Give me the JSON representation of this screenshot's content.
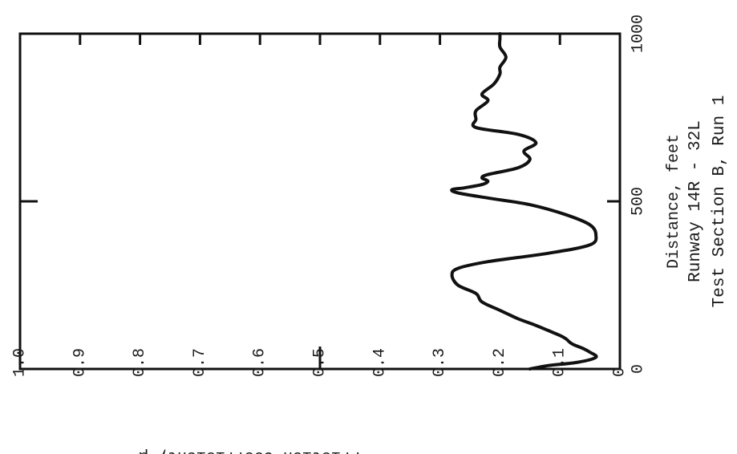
{
  "chart_data": {
    "type": "line",
    "orientation": "rotated-90-ccw",
    "xlabel": "Distance, feet",
    "ylabel": "Friction Coefficient, μ",
    "xlim": [
      0,
      1000
    ],
    "ylim": [
      0,
      1.0
    ],
    "x_ticks": [
      "0",
      "500",
      "1000"
    ],
    "y_ticks": [
      "0",
      "0.1",
      "0.2",
      "0.3",
      "0.4",
      "0.5",
      "0.6",
      "0.7",
      "0.8",
      "0.9",
      "1.0"
    ],
    "caption": [
      "Runway 14R - 32L",
      "Test Section B, Run 1"
    ],
    "grid": false,
    "series": [
      {
        "x": [
          0,
          10,
          20,
          35,
          50,
          60,
          75,
          90,
          100,
          115,
          130,
          150,
          175,
          200,
          225,
          250,
          280,
          300,
          320,
          345,
          370,
          400,
          430,
          460,
          490,
          510,
          525,
          535,
          540,
          550,
          560,
          570,
          580,
          600,
          625,
          650,
          675,
          700,
          720,
          745,
          770,
          800,
          820,
          850,
          880,
          900,
          930,
          960,
          985,
          1000
        ],
        "y": [
          0.15,
          0.12,
          0.07,
          0.04,
          0.05,
          0.06,
          0.08,
          0.09,
          0.1,
          0.12,
          0.14,
          0.17,
          0.2,
          0.23,
          0.24,
          0.27,
          0.28,
          0.27,
          0.22,
          0.12,
          0.05,
          0.04,
          0.05,
          0.09,
          0.15,
          0.22,
          0.27,
          0.28,
          0.26,
          0.23,
          0.22,
          0.23,
          0.22,
          0.17,
          0.15,
          0.16,
          0.14,
          0.17,
          0.24,
          0.24,
          0.24,
          0.22,
          0.23,
          0.21,
          0.2,
          0.2,
          0.19,
          0.2,
          0.2,
          0.2
        ]
      }
    ]
  }
}
